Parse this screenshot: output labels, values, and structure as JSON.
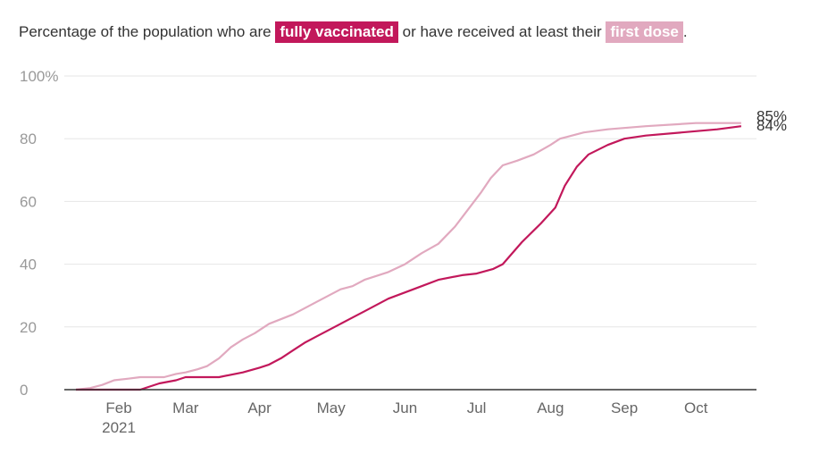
{
  "title": {
    "prefix": "Percentage of the population who are",
    "fully_vaccinated": "fully vaccinated",
    "middle": "or have received at least their",
    "first_dose": "first dose",
    "suffix": "."
  },
  "colors": {
    "fully_vaccinated": "#c2185b",
    "first_dose": "#e1a9bf",
    "grid": "#e6e6e6",
    "axis": "#333333",
    "tick": "#999999"
  },
  "chart_data": {
    "type": "line",
    "ylim": [
      0,
      100
    ],
    "yticks": [
      {
        "value": 0,
        "label": "0"
      },
      {
        "value": 20,
        "label": "20"
      },
      {
        "value": 40,
        "label": "40"
      },
      {
        "value": 60,
        "label": "60"
      },
      {
        "value": 80,
        "label": "80"
      },
      {
        "value": 100,
        "label": "100%"
      }
    ],
    "xlim": [
      "2021-01-14",
      "2021-10-25"
    ],
    "xticks": [
      {
        "date": "2021-02-01",
        "label": "Feb",
        "sublabel": "2021"
      },
      {
        "date": "2021-03-01",
        "label": "Mar"
      },
      {
        "date": "2021-04-01",
        "label": "Apr"
      },
      {
        "date": "2021-05-01",
        "label": "May"
      },
      {
        "date": "2021-06-01",
        "label": "Jun"
      },
      {
        "date": "2021-07-01",
        "label": "Jul"
      },
      {
        "date": "2021-08-01",
        "label": "Aug"
      },
      {
        "date": "2021-09-01",
        "label": "Sep"
      },
      {
        "date": "2021-10-01",
        "label": "Oct"
      }
    ],
    "series": [
      {
        "name": "first dose",
        "color": "#e1a9bf",
        "end_label": "85%",
        "points": [
          [
            "2021-01-14",
            0
          ],
          [
            "2021-01-20",
            0.5
          ],
          [
            "2021-01-25",
            1.5
          ],
          [
            "2021-01-30",
            3
          ],
          [
            "2021-02-05",
            3.5
          ],
          [
            "2021-02-10",
            4
          ],
          [
            "2021-02-20",
            4
          ],
          [
            "2021-02-25",
            5
          ],
          [
            "2021-03-01",
            5.5
          ],
          [
            "2021-03-06",
            6.5
          ],
          [
            "2021-03-10",
            7.5
          ],
          [
            "2021-03-15",
            10
          ],
          [
            "2021-03-20",
            13.5
          ],
          [
            "2021-03-25",
            16
          ],
          [
            "2021-03-30",
            18
          ],
          [
            "2021-04-05",
            21
          ],
          [
            "2021-04-15",
            24
          ],
          [
            "2021-04-25",
            28
          ],
          [
            "2021-05-05",
            32
          ],
          [
            "2021-05-10",
            33
          ],
          [
            "2021-05-15",
            35
          ],
          [
            "2021-05-25",
            37.5
          ],
          [
            "2021-06-01",
            40
          ],
          [
            "2021-06-08",
            43.5
          ],
          [
            "2021-06-15",
            46.5
          ],
          [
            "2021-06-22",
            52
          ],
          [
            "2021-06-27",
            57
          ],
          [
            "2021-07-03",
            63
          ],
          [
            "2021-07-07",
            67.5
          ],
          [
            "2021-07-12",
            71.5
          ],
          [
            "2021-07-18",
            73
          ],
          [
            "2021-07-25",
            75
          ],
          [
            "2021-08-01",
            78
          ],
          [
            "2021-08-05",
            80
          ],
          [
            "2021-08-10",
            81
          ],
          [
            "2021-08-15",
            82
          ],
          [
            "2021-08-25",
            83
          ],
          [
            "2021-09-10",
            84
          ],
          [
            "2021-10-01",
            85
          ],
          [
            "2021-10-20",
            85
          ]
        ]
      },
      {
        "name": "fully vaccinated",
        "color": "#c2185b",
        "end_label": "84%",
        "points": [
          [
            "2021-01-14",
            0
          ],
          [
            "2021-02-10",
            0
          ],
          [
            "2021-02-18",
            2
          ],
          [
            "2021-02-25",
            3
          ],
          [
            "2021-03-01",
            4
          ],
          [
            "2021-03-15",
            4
          ],
          [
            "2021-03-25",
            5.5
          ],
          [
            "2021-04-01",
            7
          ],
          [
            "2021-04-05",
            8
          ],
          [
            "2021-04-10",
            10
          ],
          [
            "2021-04-15",
            12.5
          ],
          [
            "2021-04-20",
            15
          ],
          [
            "2021-04-25",
            17
          ],
          [
            "2021-05-05",
            21
          ],
          [
            "2021-05-10",
            23
          ],
          [
            "2021-05-15",
            25
          ],
          [
            "2021-05-25",
            29
          ],
          [
            "2021-06-01",
            31
          ],
          [
            "2021-06-08",
            33
          ],
          [
            "2021-06-15",
            35
          ],
          [
            "2021-06-25",
            36.5
          ],
          [
            "2021-07-01",
            37
          ],
          [
            "2021-07-08",
            38.5
          ],
          [
            "2021-07-12",
            40
          ],
          [
            "2021-07-20",
            47
          ],
          [
            "2021-07-28",
            53
          ],
          [
            "2021-08-03",
            58
          ],
          [
            "2021-08-07",
            65
          ],
          [
            "2021-08-12",
            71
          ],
          [
            "2021-08-17",
            75
          ],
          [
            "2021-08-25",
            78
          ],
          [
            "2021-09-01",
            80
          ],
          [
            "2021-09-10",
            81
          ],
          [
            "2021-09-25",
            82
          ],
          [
            "2021-10-10",
            83
          ],
          [
            "2021-10-20",
            84
          ]
        ]
      }
    ]
  }
}
